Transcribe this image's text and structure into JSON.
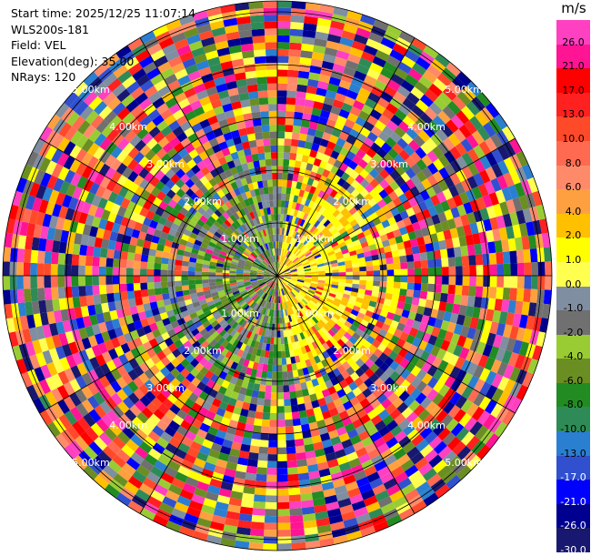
{
  "header": {
    "start_time": "Start time: 2025/12/25 11:07:14",
    "instrument": "WLS200s-181",
    "field": "Field: VEL",
    "elevation": "Elevation(deg): 35.00",
    "nrays": "NRays: 120"
  },
  "colorbar": {
    "unit": "m/s",
    "ticks": [
      "26.0",
      "21.0",
      "17.0",
      "13.0",
      "10.0",
      "8.0",
      "6.0",
      "4.0",
      "2.0",
      "1.0",
      "0.0",
      "-1.0",
      "-2.0",
      "-4.0",
      "-6.0",
      "-8.0",
      "-10.0",
      "-13.0",
      "-17.0",
      "-21.0",
      "-26.0",
      "-30.0"
    ],
    "colors": [
      "#ff40c0",
      "#ff1493",
      "#ff0000",
      "#ff2020",
      "#ff4a2a",
      "#ff6a50",
      "#ff8a6a",
      "#ffa040",
      "#ffc000",
      "#ffff00",
      "#ffff50",
      "#7f8ea0",
      "#707070",
      "#99cc33",
      "#6b8e23",
      "#228b22",
      "#2e8b57",
      "#2a7fd0",
      "#3050d0",
      "#0000ff",
      "#000090",
      "#181870"
    ]
  },
  "range_rings": {
    "labels": [
      "1.00km",
      "2.00km",
      "3.00km",
      "4.00km",
      "5.00km"
    ]
  },
  "chart_data": {
    "type": "heatmap",
    "projection": "polar (PPI)",
    "field": "VEL",
    "unit": "m/s",
    "elevation_deg": 35.0,
    "n_rays": 120,
    "range_rings_km": [
      1,
      2,
      3,
      4,
      5
    ],
    "azimuth_lines_deg": [
      0,
      30,
      60,
      90,
      120,
      150,
      180,
      210,
      240,
      270,
      300,
      330
    ],
    "color_scale": [
      -30,
      -26,
      -21,
      -17,
      -13,
      -10,
      -8,
      -6,
      -4,
      -2,
      -1,
      0,
      1,
      2,
      4,
      6,
      8,
      10,
      13,
      17,
      21,
      26
    ],
    "near_range_pattern": "mostly positive velocities (yellow, 2-4 m/s) east of radar, gray/green near zero west of radar",
    "far_range_pattern": "noise: random colors across full scale"
  }
}
